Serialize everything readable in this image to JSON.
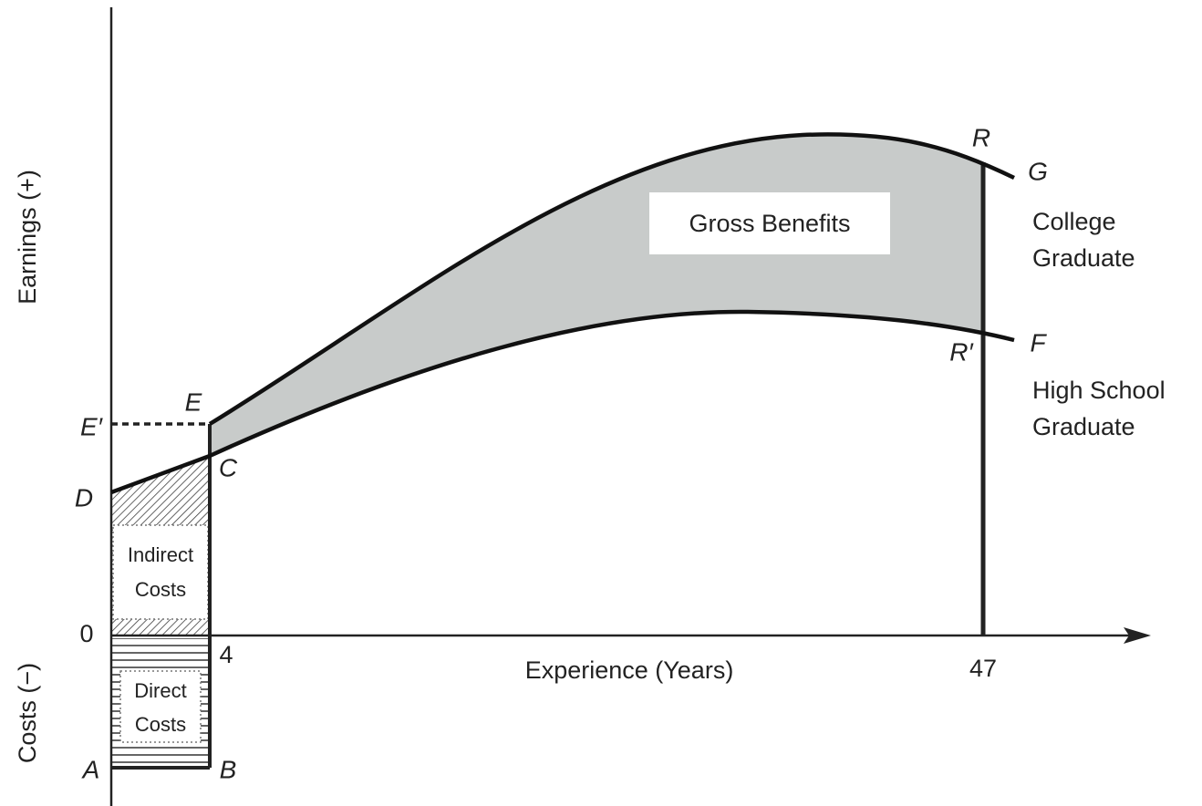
{
  "axes": {
    "y_positive": "Earnings (+)",
    "y_negative": "Costs (−)",
    "x": "Experience (Years)",
    "origin": "0"
  },
  "x_markers": [
    "4",
    "47"
  ],
  "points": {
    "A": "A",
    "B": "B",
    "C": "C",
    "D": "D",
    "E": "E",
    "E_prime": "E′",
    "R": "R",
    "R_prime": "R′",
    "G": "G",
    "F": "F"
  },
  "regions": {
    "gross_benefits": "Gross Benefits",
    "indirect_costs": [
      "Indirect",
      "Costs"
    ],
    "direct_costs": [
      "Direct",
      "Costs"
    ]
  },
  "curves": {
    "college": [
      "College",
      "Graduate"
    ],
    "high_school": [
      "High School",
      "Graduate"
    ]
  }
}
